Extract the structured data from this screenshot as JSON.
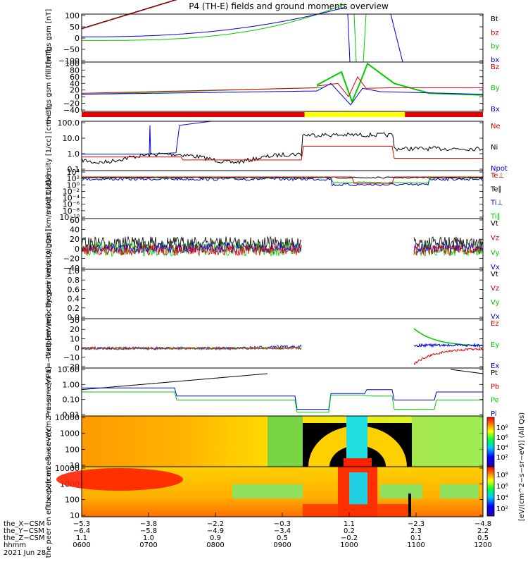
{
  "title": "P4 (TH-E) fields and ground moments overview",
  "colors": {
    "black": "#000000",
    "red": "#e00000",
    "green": "#00cc00",
    "blue": "#0000dd",
    "yellow": "#ffff00"
  },
  "chart_data": [
    {
      "type": "line",
      "ylabel": "the fgs gsm [nT]",
      "yticks": [
        "100",
        "50",
        "0",
        "−50",
        "−100"
      ],
      "ylim": [
        -100,
        100
      ],
      "legend": [
        "Bt",
        "bz",
        "by",
        "bx"
      ]
    },
    {
      "type": "line",
      "ylabel": "the fgs gsm (fill) [nT]",
      "yticks": [
        "100",
        "80",
        "60",
        "40",
        "20",
        "0",
        "−20",
        "−40"
      ],
      "ylim": [
        -50,
        100
      ],
      "legend": [
        "Bz",
        "By",
        "Bx"
      ]
    },
    {
      "type": "bar",
      "mode_bar": [
        {
          "from": "0600",
          "to": "0920",
          "color": "red"
        },
        {
          "from": "0920",
          "to": "1050",
          "color": "yellow"
        },
        {
          "from": "1050",
          "to": "1200",
          "color": "red"
        }
      ]
    },
    {
      "type": "line",
      "ylabel": "Density [1/cc] [cm−3]",
      "yscale": "log",
      "yticks": [
        "100.0",
        "10.0",
        "1.0",
        "0.1"
      ],
      "legend": [
        "Ne",
        "Ni",
        "Npot"
      ]
    },
    {
      "type": "line",
      "ylabel": "moqt3 [eV]",
      "yscale": "log",
      "yticks": [
        "10⁴",
        "10²",
        "10⁰",
        "10⁻²",
        "10⁻⁴",
        "10⁻⁶",
        "10⁻⁸",
        "10⁻¹⁰"
      ],
      "legend": [
        "Te⊥",
        "Te∥",
        "Ti⊥",
        "Ti∥"
      ]
    },
    {
      "type": "line",
      "ylabel": "the peir velocity gsm [km/s (All Qs)]",
      "yticks": [
        "60",
        "40",
        "20",
        "0",
        "−20",
        "−40"
      ],
      "ylim": [
        -40,
        60
      ],
      "legend": [
        "Vt",
        "Vz",
        "Vy",
        "Vx"
      ]
    },
    {
      "type": "line",
      "ylabel": "the peer velocity gsm [km/s (All Qs)]",
      "yticks": [
        "1.0",
        "0.8",
        "0.6",
        "0.4",
        "0.2",
        "0.0"
      ],
      "ylim": [
        0,
        1
      ],
      "legend": [
        "Vt",
        "Vz",
        "Vy",
        "Vx"
      ]
    },
    {
      "type": "line",
      "ylabel": "E=−VxB [mV/m]",
      "yticks": [
        "30",
        "20",
        "10",
        "0",
        "−10",
        "−20"
      ],
      "ylim": [
        -20,
        30
      ],
      "legend": [
        "Ez",
        "Ey",
        "Ex"
      ]
    },
    {
      "type": "line",
      "ylabel": "Pressure [nPa]",
      "yscale": "log",
      "yticks": [
        "10.00",
        "1.00",
        "0.10",
        "0.01"
      ],
      "legend": [
        "Pt",
        "Pb",
        "Pe",
        "Pi"
      ]
    },
    {
      "type": "heatmap",
      "ylabel": "the peir en eflux eV/(cm2−s−sr−eV)",
      "yscale": "log",
      "yticks": [
        "10000",
        "1000",
        "100",
        "10"
      ]
    },
    {
      "type": "heatmap",
      "ylabel": "the peer en eflux eV/(cm2−s−sr−eV)",
      "yscale": "log",
      "yticks": [
        "10000",
        "1000",
        "100",
        "10"
      ]
    }
  ],
  "colorbar": {
    "label": "[eV/(cm^2−s−sr−eV)] (All Qs)",
    "ticks_top": [
      "10⁸",
      "10⁶",
      "10⁴",
      "10²"
    ],
    "ticks_bottom": [
      "10⁸",
      "10⁶",
      "10⁴",
      "10²"
    ]
  },
  "x_axis": {
    "row_labels": [
      "the_X−CSM",
      "the_Y−CSM",
      "the_Z−CSM",
      "hhmm",
      "2021 Jun 28"
    ],
    "X": [
      "−5.3",
      "−3.8",
      "−2.2",
      "−0.3",
      "1.1",
      "−2.3",
      "−4.8"
    ],
    "Y": [
      "−6.4",
      "−5.8",
      "−4.9",
      "−3.4",
      "0.2",
      "2.3",
      "2.2"
    ],
    "Z": [
      "1.1",
      "1.0",
      "0.9",
      "0.5",
      "−0.2",
      "0.1",
      "0.5"
    ],
    "hhmm": [
      "0600",
      "0700",
      "0800",
      "0900",
      "1000",
      "1100",
      "1200"
    ]
  }
}
